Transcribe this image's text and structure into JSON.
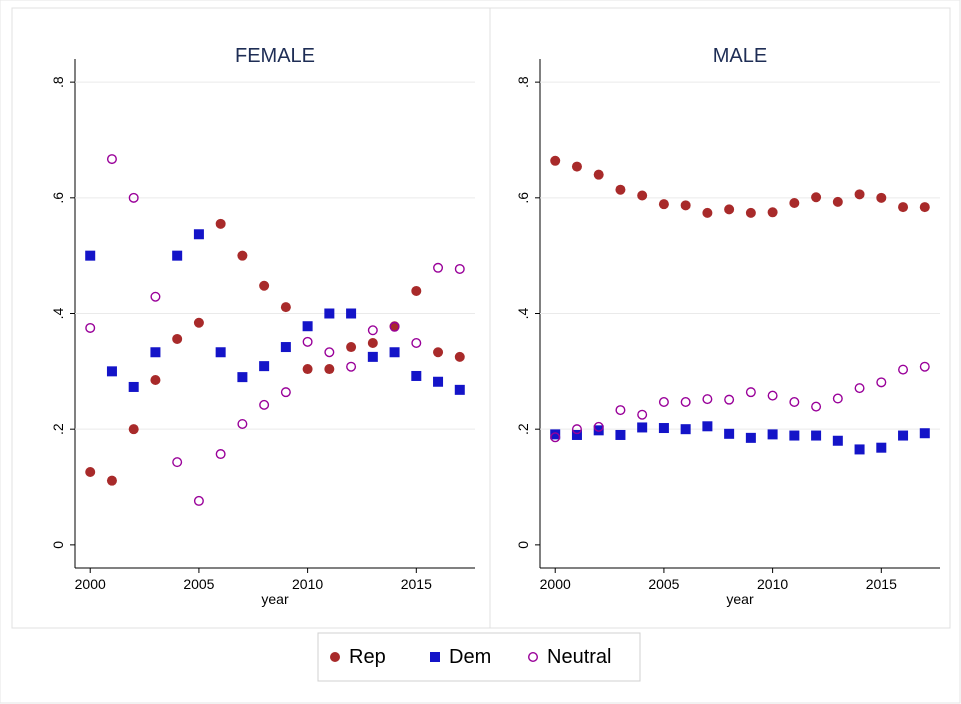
{
  "chart_data": [
    {
      "type": "scatter",
      "title": "FEMALE",
      "x_label": "year",
      "x": [
        2000,
        2001,
        2002,
        2003,
        2004,
        2005,
        2006,
        2007,
        2008,
        2009,
        2010,
        2011,
        2012,
        2013,
        2014,
        2015,
        2016,
        2017
      ],
      "xlim": [
        1999.3,
        2017.7
      ],
      "xticks": [
        2000,
        2005,
        2010,
        2015
      ],
      "ylim": [
        -0.04,
        0.84
      ],
      "yticks": [
        0,
        {
          "value": 0.2,
          "label": ".2"
        },
        {
          "value": 0.4,
          "label": ".4"
        },
        {
          "value": 0.6,
          "label": ".6"
        },
        {
          "value": 0.8,
          "label": ".8"
        }
      ],
      "grid": true,
      "series": [
        {
          "name": "Rep",
          "color": "#a82a2a",
          "marker": "circle",
          "values": [
            0.126,
            0.111,
            0.2,
            0.285,
            0.356,
            0.384,
            0.555,
            0.5,
            0.448,
            0.411,
            0.304,
            0.304,
            0.342,
            0.349,
            0.378,
            0.439,
            0.333,
            0.325
          ]
        },
        {
          "name": "Dem",
          "color": "#1414c8",
          "marker": "square",
          "values": [
            0.5,
            0.3,
            0.273,
            0.333,
            0.5,
            0.537,
            0.333,
            0.29,
            0.309,
            0.342,
            0.378,
            0.4,
            0.4,
            0.325,
            0.333,
            0.292,
            0.282,
            0.268
          ]
        },
        {
          "name": "Neutral",
          "color": "#990099",
          "marker": "hollow-circle",
          "values": [
            0.375,
            0.667,
            0.6,
            0.429,
            0.143,
            0.076,
            0.157,
            0.209,
            0.242,
            0.264,
            0.351,
            0.333,
            0.308,
            0.371,
            0.377,
            0.349,
            0.479,
            0.477
          ]
        }
      ]
    },
    {
      "type": "scatter",
      "title": "MALE",
      "x_label": "year",
      "x": [
        2000,
        2001,
        2002,
        2003,
        2004,
        2005,
        2006,
        2007,
        2008,
        2009,
        2010,
        2011,
        2012,
        2013,
        2014,
        2015,
        2016,
        2017
      ],
      "xlim": [
        1999.3,
        2017.7
      ],
      "xticks": [
        2000,
        2005,
        2010,
        2015
      ],
      "ylim": [
        -0.04,
        0.84
      ],
      "yticks": [
        0,
        {
          "value": 0.2,
          "label": ".2"
        },
        {
          "value": 0.4,
          "label": ".4"
        },
        {
          "value": 0.6,
          "label": ".6"
        },
        {
          "value": 0.8,
          "label": ".8"
        }
      ],
      "grid": true,
      "series": [
        {
          "name": "Rep",
          "color": "#a82a2a",
          "marker": "circle",
          "values": [
            0.664,
            0.654,
            0.64,
            0.614,
            0.604,
            0.589,
            0.587,
            0.574,
            0.58,
            0.574,
            0.575,
            0.591,
            0.601,
            0.593,
            0.606,
            0.6,
            0.584,
            0.584
          ]
        },
        {
          "name": "Dem",
          "color": "#1414c8",
          "marker": "square",
          "values": [
            0.191,
            0.19,
            0.198,
            0.19,
            0.203,
            0.202,
            0.2,
            0.205,
            0.192,
            0.185,
            0.191,
            0.189,
            0.189,
            0.18,
            0.165,
            0.168,
            0.189,
            0.193
          ]
        },
        {
          "name": "Neutral",
          "color": "#990099",
          "marker": "hollow-circle",
          "values": [
            0.186,
            0.2,
            0.204,
            0.233,
            0.225,
            0.247,
            0.247,
            0.252,
            0.251,
            0.264,
            0.258,
            0.247,
            0.239,
            0.253,
            0.271,
            0.281,
            0.303,
            0.308
          ]
        }
      ]
    }
  ]
}
